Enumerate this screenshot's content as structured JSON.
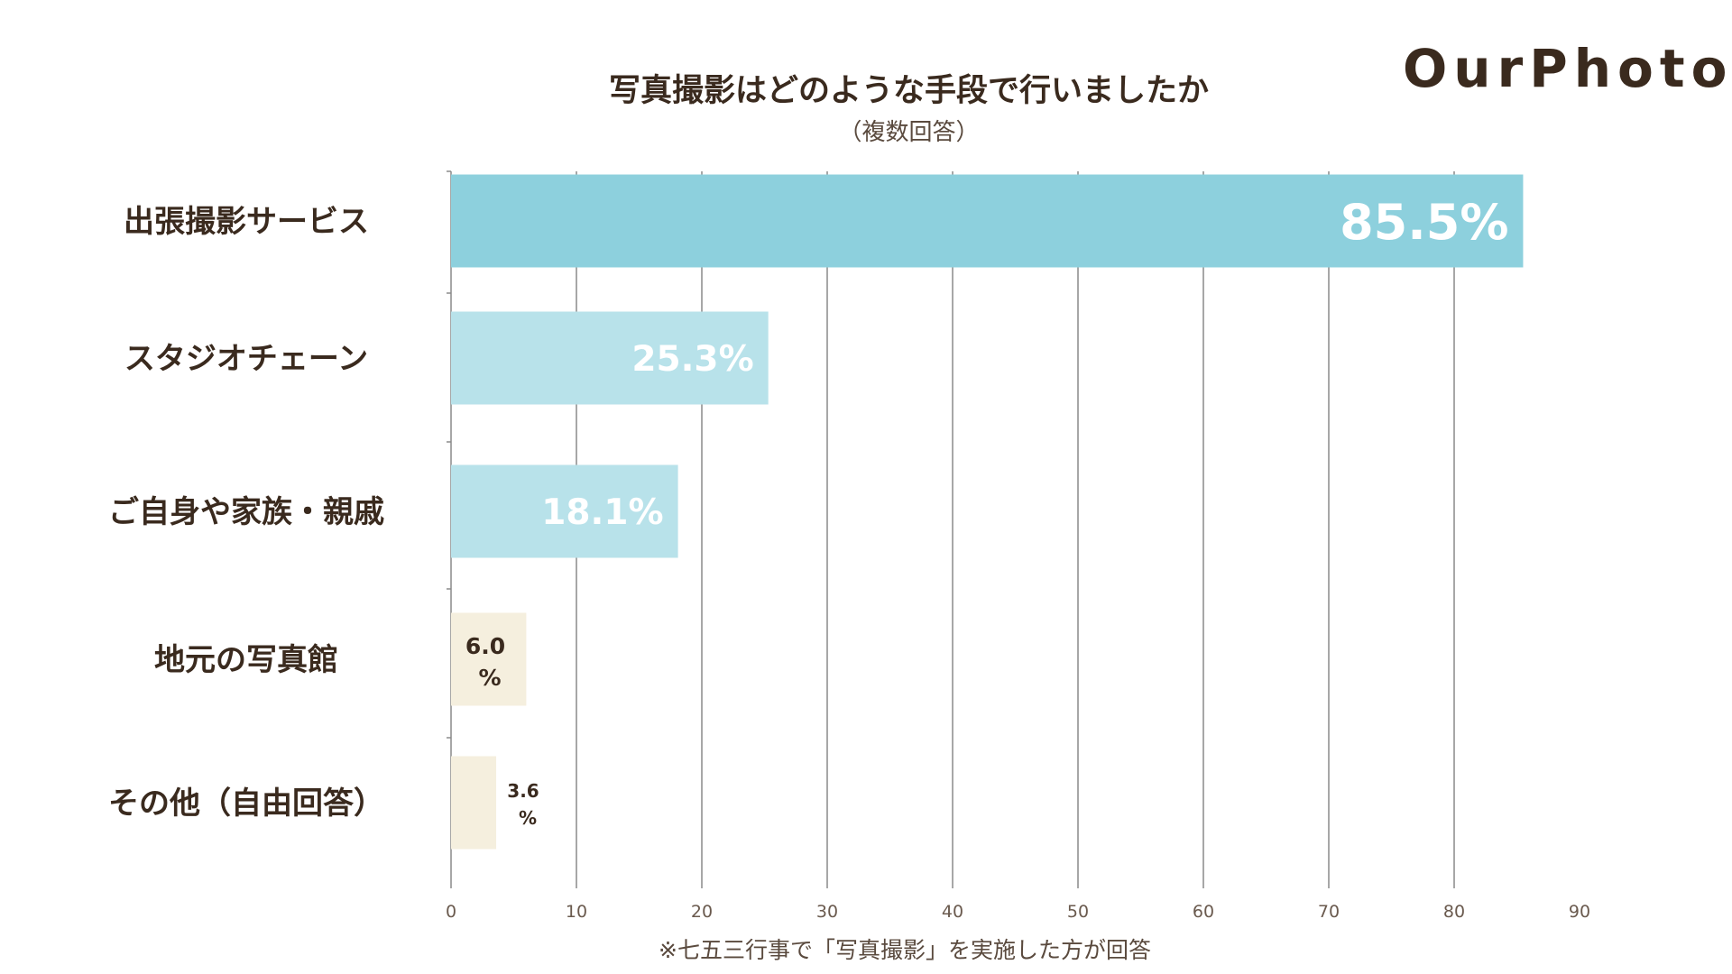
{
  "brand": {
    "logo_text": "OurPhoto"
  },
  "footnote": "※七五三行事で「写真撮影」を実施した方が回答",
  "chart_data": {
    "type": "bar",
    "orientation": "horizontal",
    "title": "写真撮影はどのような手段で行いましたか",
    "subtitle": "（複数回答）",
    "xlabel": "",
    "ylabel": "",
    "xlim": [
      0,
      90
    ],
    "xticks": [
      0,
      10,
      20,
      30,
      40,
      50,
      60,
      70,
      80,
      90
    ],
    "grid": true,
    "categories": [
      "出張撮影サービス",
      "スタジオチェーン",
      "ご自身や家族・親戚",
      "地元の写真館",
      "その他（自由回答）"
    ],
    "values": [
      85.5,
      25.3,
      18.1,
      6.0,
      3.6
    ],
    "data_labels": [
      "85.5%",
      "25.3%",
      "18.1%",
      "6.0%",
      "3.6%"
    ],
    "colors": [
      "#8dd0dd",
      "#b8e2ea",
      "#b8e2ea",
      "#f5efde",
      "#f5efde"
    ]
  }
}
